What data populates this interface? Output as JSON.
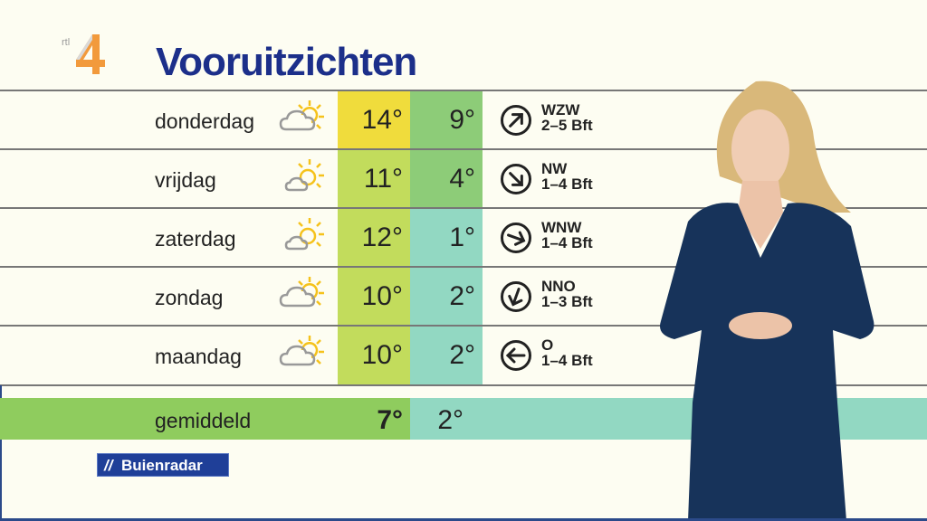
{
  "channel": {
    "logo_text": "rtl 4"
  },
  "title": "Vooruitzichten",
  "colors": {
    "title": "#1c2f8a",
    "high_warm": "#f0dc3c",
    "high": "#c2dc5c",
    "low_mid": "#8dcc78",
    "low_cold": "#92d8c2",
    "avg_green": "#8fcc5e"
  },
  "days": [
    {
      "day": "donderdag",
      "icon": "cloud-sun-icon",
      "high": "14°",
      "low": "9°",
      "wind_dir": "WZW",
      "wind_force": "2–5 Bft",
      "arrow_deg": 45
    },
    {
      "day": "vrijdag",
      "icon": "sun-cloud-icon",
      "high": "11°",
      "low": "4°",
      "wind_dir": "NW",
      "wind_force": "1–4 Bft",
      "arrow_deg": 135
    },
    {
      "day": "zaterdag",
      "icon": "sun-cloud-icon",
      "high": "12°",
      "low": "1°",
      "wind_dir": "WNW",
      "wind_force": "1–4 Bft",
      "arrow_deg": 110
    },
    {
      "day": "zondag",
      "icon": "cloud-sun-icon",
      "high": "10°",
      "low": "2°",
      "wind_dir": "NNO",
      "wind_force": "1–3 Bft",
      "arrow_deg": -160
    },
    {
      "day": "maandag",
      "icon": "cloud-sun-icon",
      "high": "10°",
      "low": "2°",
      "wind_dir": "O",
      "wind_force": "1–4 Bft",
      "arrow_deg": -90
    }
  ],
  "average": {
    "label": "gemiddeld",
    "high": "7°",
    "low": "2°"
  },
  "sponsor": "Buienradar"
}
